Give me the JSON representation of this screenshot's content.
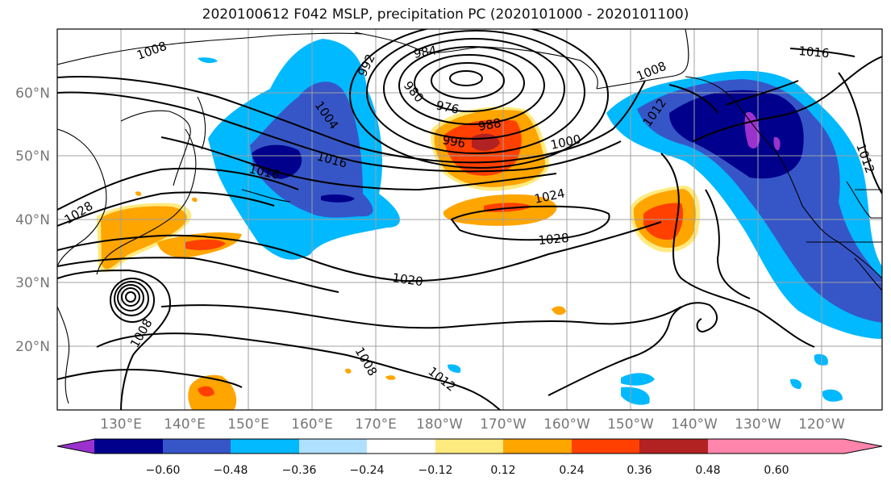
{
  "title": "2020100612 F042 MSLP, precipitation PC (2020101000 - 2020101100)",
  "lat_labels": [
    "60°N",
    "50°N",
    "40°N",
    "30°N",
    "20°N"
  ],
  "lon_labels": [
    "130°E",
    "140°E",
    "150°E",
    "160°E",
    "170°E",
    "180°W",
    "170°W",
    "160°W",
    "150°W",
    "140°W",
    "130°W",
    "120°W"
  ],
  "isobar_labels": [
    "1008",
    "992",
    "984",
    "980",
    "976",
    "1004",
    "988",
    "996",
    "1008",
    "1012",
    "1016",
    "1016",
    "1016",
    "1012",
    "1000",
    "1024",
    "1028",
    "1028",
    "1020",
    "1008",
    "1008",
    "1012"
  ],
  "colorbar": {
    "ticks": [
      "−0.60",
      "−0.48",
      "−0.36",
      "−0.24",
      "−0.12",
      "0.12",
      "0.24",
      "0.36",
      "0.48",
      "0.60"
    ],
    "colors": [
      "#9b32cd",
      "#00008c",
      "#3656c8",
      "#00b9ff",
      "#b0e0ff",
      "#ffffff",
      "#ffea80",
      "#ffa500",
      "#ff4000",
      "#b22222",
      "#ff85ad"
    ]
  }
}
